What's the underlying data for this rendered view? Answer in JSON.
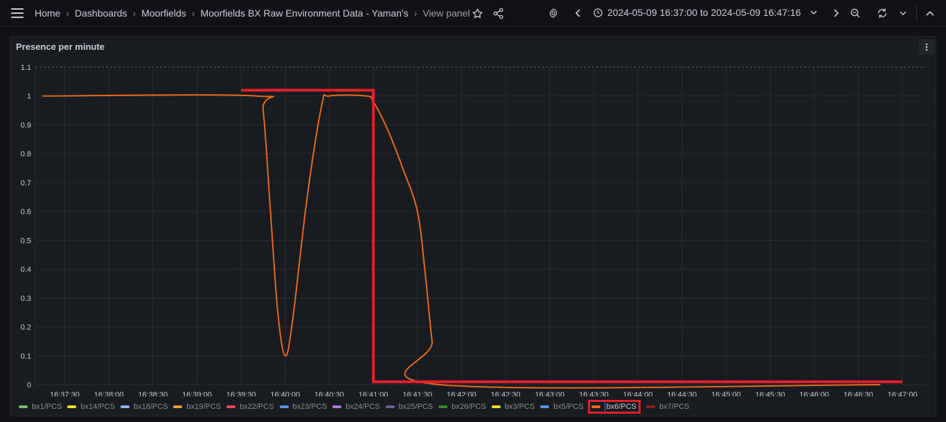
{
  "breadcrumb": [
    {
      "label": "Home",
      "name": "breadcrumb-home"
    },
    {
      "label": "Dashboards",
      "name": "breadcrumb-dashboards"
    },
    {
      "label": "Moorfields",
      "name": "breadcrumb-moorfields"
    },
    {
      "label": "Moorfields BX Raw Environment Data - Yaman's",
      "name": "breadcrumb-dashboard"
    },
    {
      "label": "View panel",
      "name": "breadcrumb-view-panel"
    }
  ],
  "time_range": "2024-05-09 16:37:00 to 2024-05-09 16:47:16",
  "panel": {
    "title": "Presence per minute"
  },
  "colors": {
    "series": "#ea6a1a",
    "annotation": "#e5202a",
    "grid": "#2a2c31"
  },
  "chart_data": {
    "type": "line",
    "y_ticks": [
      "0",
      "0.1",
      "0.2",
      "0.3",
      "0.4",
      "0.5",
      "0.6",
      "0.7",
      "0.8",
      "0.9",
      "1",
      "1.1"
    ],
    "x_ticks": [
      "16:37:30",
      "16:38:00",
      "16:38:30",
      "16:39:00",
      "16:39:30",
      "16:40:00",
      "16:40:30",
      "16:41:00",
      "16:41:30",
      "16:42:00",
      "16:42:30",
      "16:43:00",
      "16:43:30",
      "16:44:00",
      "16:44:30",
      "16:45:00",
      "16:45:30",
      "16:46:00",
      "16:46:30",
      "16:47:00"
    ],
    "ylim": [
      0,
      1.1
    ],
    "xlim": [
      "16:37:10",
      "16:47:16"
    ],
    "grid": true,
    "legend_placement": "bottom",
    "series": [
      {
        "name": "bx6/PCS",
        "points": [
          [
            "16:37:15",
            1
          ],
          [
            "16:39:40",
            1
          ],
          [
            "16:39:45",
            0.95
          ],
          [
            "16:39:50",
            0.6
          ],
          [
            "16:39:55",
            0.25
          ],
          [
            "16:40:00",
            0.1
          ],
          [
            "16:40:05",
            0.22
          ],
          [
            "16:40:15",
            0.65
          ],
          [
            "16:40:25",
            0.97
          ],
          [
            "16:40:30",
            1
          ],
          [
            "16:40:55",
            1
          ],
          [
            "16:41:00",
            0.98
          ],
          [
            "16:41:10",
            0.88
          ],
          [
            "16:41:20",
            0.75
          ],
          [
            "16:41:30",
            0.6
          ],
          [
            "16:41:35",
            0.4
          ],
          [
            "16:41:40",
            0.15
          ],
          [
            "16:41:45",
            0
          ],
          [
            "16:46:45",
            0
          ]
        ]
      }
    ],
    "annotation_path": [
      [
        "16:39:30",
        1.02
      ],
      [
        "16:41:00",
        1.02
      ],
      [
        "16:41:00",
        0.01
      ],
      [
        "16:47:00",
        0.01
      ]
    ]
  },
  "legend": [
    {
      "label": "bx1/PCS",
      "color": "#73bf69"
    },
    {
      "label": "bx14/PCS",
      "color": "#fade2a"
    },
    {
      "label": "bx18/PCS",
      "color": "#8ab8ff"
    },
    {
      "label": "bx19/PCS",
      "color": "#ff9830"
    },
    {
      "label": "bx22/PCS",
      "color": "#f2495c"
    },
    {
      "label": "bx23/PCS",
      "color": "#5794f2"
    },
    {
      "label": "bx24/PCS",
      "color": "#b877d9"
    },
    {
      "label": "bx25/PCS",
      "color": "#705da0"
    },
    {
      "label": "bx26/PCS",
      "color": "#37872d"
    },
    {
      "label": "bx3/PCS",
      "color": "#fade2a"
    },
    {
      "label": "bx5/PCS",
      "color": "#5794f2"
    },
    {
      "label": "bx6/PCS",
      "color": "#ea6a1a",
      "highlight": true
    },
    {
      "label": "bx7/PCS",
      "color": "#8f1d1d"
    }
  ]
}
